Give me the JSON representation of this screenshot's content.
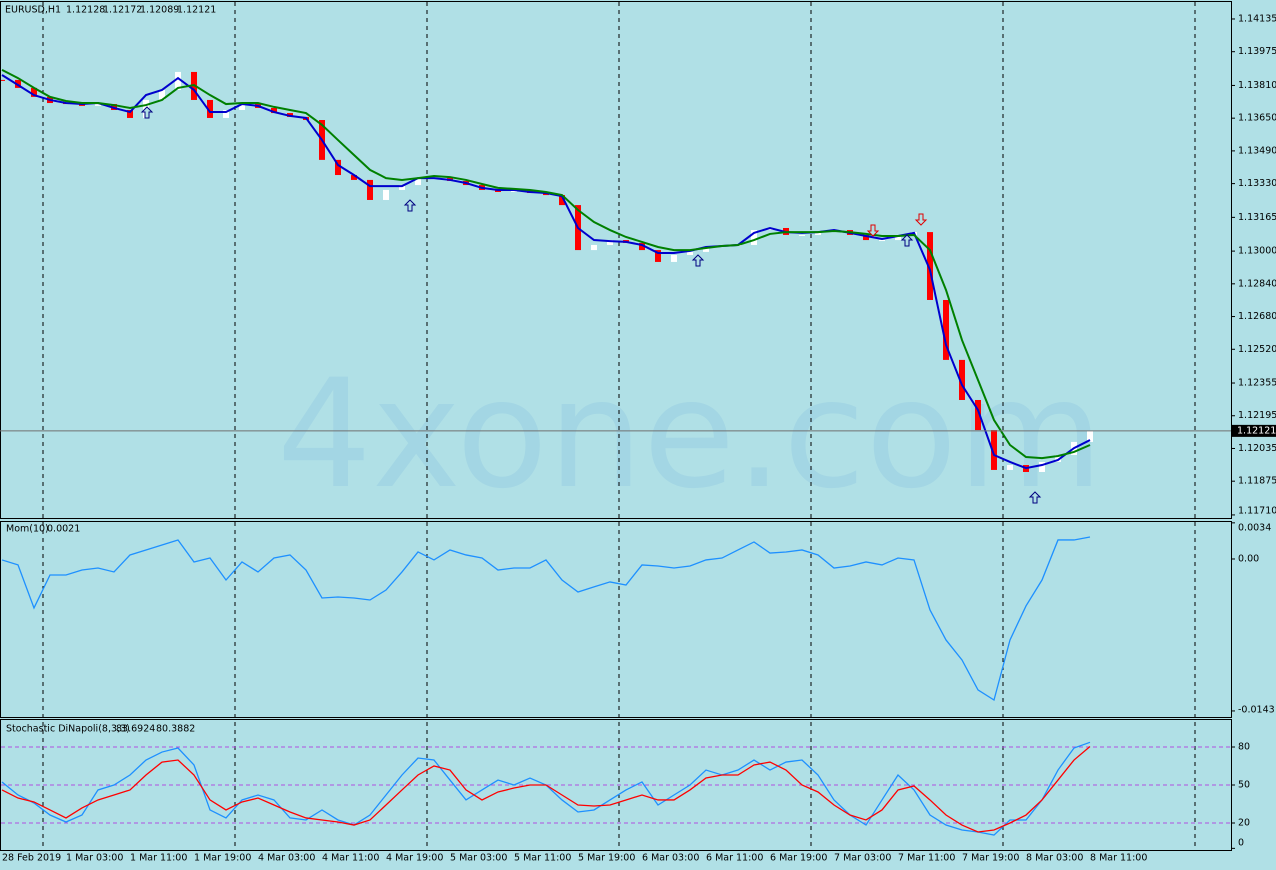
{
  "chart_data": [
    {
      "type": "candlestick",
      "title": "EURUSD,H1",
      "ohlc": [
        1.12128,
        1.12172,
        1.12089,
        1.12121
      ],
      "watermark": "4xone.com",
      "up_color": "#ffffff",
      "down_color": "#ff0000",
      "values": [
        1.13837,
        1.13798,
        1.13754,
        1.13724,
        1.13719,
        1.1371,
        1.13719,
        1.1369,
        1.13651,
        1.13739,
        1.13788,
        1.13876,
        1.13739,
        1.13651,
        1.1369,
        1.13724,
        1.137,
        1.13675,
        1.13656,
        1.13641,
        1.13446,
        1.13372,
        1.13348,
        1.1325,
        1.13299,
        1.13323,
        1.13357,
        1.13357,
        1.13343,
        1.13323,
        1.13299,
        1.13289,
        1.13299,
        1.13284,
        1.13274,
        1.13225,
        1.13005,
        1.1303,
        1.13054,
        1.1304,
        1.13005,
        1.12947,
        1.12981,
        1.12996,
        1.1302,
        1.13025,
        1.1303,
        1.13103,
        1.13113,
        1.13079,
        1.13079,
        1.13093,
        1.13103,
        1.13079,
        1.13054,
        1.13054,
        1.13079,
        1.13093,
        1.12761,
        1.12468,
        1.12272,
        1.12125,
        1.1193,
        1.11954,
        1.1192,
        1.11969,
        1.12003,
        1.12067,
        1.12121
      ],
      "series": [
        {
          "color": "#0000cd",
          "values": [
            1.13861,
            1.13812,
            1.13763,
            1.13739,
            1.13724,
            1.13719,
            1.13724,
            1.137,
            1.1368,
            1.13763,
            1.13788,
            1.13846,
            1.13788,
            1.1368,
            1.1368,
            1.13719,
            1.1371,
            1.1368,
            1.13661,
            1.13651,
            1.13543,
            1.13421,
            1.13372,
            1.13318,
            1.13318,
            1.13318,
            1.13357,
            1.13357,
            1.13348,
            1.13333,
            1.13309,
            1.13299,
            1.13299,
            1.13289,
            1.13284,
            1.13269,
            1.13113,
            1.13054,
            1.13049,
            1.13045,
            1.1303,
            1.12991,
            1.12991,
            1.13001,
            1.1302,
            1.13025,
            1.1303,
            1.13089,
            1.13113,
            1.13093,
            1.13089,
            1.13093,
            1.13103,
            1.13089,
            1.13074,
            1.13059,
            1.13074,
            1.13089,
            1.12908,
            1.12541,
            1.12345,
            1.12223,
            1.12003,
            1.11969,
            1.11939,
            1.11954,
            1.11979,
            1.12037,
            1.12076
          ]
        },
        {
          "color": "#008000",
          "values": [
            1.13886,
            1.13846,
            1.13798,
            1.13754,
            1.13734,
            1.13724,
            1.13724,
            1.13714,
            1.137,
            1.13714,
            1.13739,
            1.13798,
            1.13812,
            1.13763,
            1.13719,
            1.13724,
            1.13724,
            1.13705,
            1.1369,
            1.13675,
            1.13617,
            1.13543,
            1.1347,
            1.13397,
            1.13357,
            1.13348,
            1.13357,
            1.13367,
            1.13362,
            1.13348,
            1.13328,
            1.13309,
            1.13304,
            1.13299,
            1.13289,
            1.13274,
            1.13201,
            1.13142,
            1.13103,
            1.13069,
            1.13045,
            1.1302,
            1.13005,
            1.13005,
            1.13015,
            1.13025,
            1.1303,
            1.13054,
            1.13084,
            1.13093,
            1.13093,
            1.13093,
            1.13098,
            1.13093,
            1.13084,
            1.13074,
            1.13074,
            1.13079,
            1.13005,
            1.1281,
            1.12565,
            1.1237,
            1.12174,
            1.12052,
            1.11993,
            1.11988,
            1.11998,
            1.12018,
            1.12052
          ]
        }
      ],
      "ylim": [
        1.11695,
        1.14218
      ],
      "yticks": [
        1.14135,
        1.13975,
        {
          "value": 1.1381,
          "label": "1.13810"
        },
        {
          "value": 1.1365,
          "label": "1.13650"
        },
        {
          "value": 1.1349,
          "label": "1.13490"
        },
        {
          "value": 1.1333,
          "label": "1.13330"
        },
        1.13165,
        {
          "value": 1.13,
          "label": "1.13000"
        },
        {
          "value": 1.1284,
          "label": "1.12840"
        },
        {
          "value": 1.1268,
          "label": "1.12680"
        },
        {
          "value": 1.1252,
          "label": "1.12520"
        },
        1.12355,
        1.12195,
        1.12035,
        1.11875,
        {
          "value": 1.1171,
          "label": "1.11710"
        }
      ]
    },
    {
      "type": "line",
      "title": "Mom(10)",
      "value": 0.0021,
      "series": [
        {
          "color": "#1e90ff",
          "values": [
            -9e-05,
            -0.00056,
            -0.00461,
            -0.00151,
            -0.00151,
            -0.00104,
            -0.00085,
            -0.00122,
            0.00038,
            0.00085,
            0.00132,
            0.00179,
            -0.00028,
            9e-05,
            -0.00198,
            -0.00028,
            -0.00122,
            9e-05,
            0.00038,
            -0.00104,
            -0.00367,
            -0.00358,
            -0.00367,
            -0.00386,
            -0.00292,
            -0.00122,
            0.00066,
            -9e-05,
            0.00085,
            0.00038,
            9e-05,
            -0.00104,
            -0.00085,
            -0.00085,
            -9e-05,
            -0.00198,
            -0.00311,
            -0.00263,
            -0.00216,
            -0.00245,
            -0.00056,
            -0.00066,
            -0.00085,
            -0.00066,
            -9e-05,
            9e-05,
            0.00085,
            0.0016,
            0.00056,
            0.00066,
            0.00085,
            0.00038,
            -0.00085,
            -0.00066,
            -0.00028,
            -0.00056,
            9e-05,
            -9e-05,
            -0.0048,
            -0.00762,
            -0.0095,
            -0.01232,
            -0.01327,
            -0.00762,
            -0.00442,
            -0.00198,
            0.00179,
            0.00179,
            0.00207
          ]
        }
      ],
      "ylim": [
        -0.01487,
        0.00348
      ],
      "yticks": [
        0.0034,
        {
          "value": 0,
          "label": "0.00"
        },
        -0.0143
      ]
    },
    {
      "type": "line",
      "title": "Stochastic DiNapoli(8,3,3)",
      "readings": [
        83.6924,
        80.3882
      ],
      "series": [
        {
          "color": "#1e90ff",
          "values": [
            52.4,
            42.1,
            35.8,
            26.3,
            20.8,
            26.3,
            46.1,
            50.0,
            57.9,
            69.7,
            76.0,
            79.2,
            65.8,
            30.3,
            24.0,
            38.2,
            42.1,
            38.2,
            24.0,
            22.4,
            30.3,
            22.4,
            18.4,
            26.3,
            42.1,
            57.9,
            71.3,
            69.7,
            53.9,
            38.2,
            46.1,
            53.9,
            50.0,
            55.5,
            50.0,
            38.2,
            28.7,
            30.3,
            38.2,
            46.1,
            52.4,
            34.2,
            42.1,
            50.0,
            61.8,
            57.9,
            61.8,
            69.7,
            61.8,
            68.1,
            69.7,
            57.9,
            38.2,
            26.3,
            18.4,
            38.2,
            57.9,
            46.1,
            26.3,
            18.4,
            14.5,
            12.9,
            10.5,
            22.4,
            22.4,
            38.2,
            61.8,
            79.2,
            83.7
          ]
        },
        {
          "color": "#ff0000",
          "values": [
            46.1,
            39.7,
            36.6,
            30.3,
            24.0,
            31.9,
            38.2,
            42.1,
            46.1,
            57.9,
            68.1,
            69.7,
            57.9,
            38.2,
            30.3,
            36.6,
            39.7,
            34.2,
            28.7,
            24.0,
            22.4,
            20.8,
            18.4,
            22.4,
            34.2,
            46.1,
            57.9,
            65.0,
            61.8,
            46.1,
            38.2,
            44.5,
            47.6,
            50.0,
            50.0,
            42.1,
            34.2,
            33.4,
            34.2,
            38.2,
            42.1,
            38.2,
            38.2,
            46.1,
            55.5,
            57.9,
            57.9,
            65.8,
            68.1,
            61.8,
            50.0,
            44.5,
            34.2,
            26.3,
            22.4,
            30.3,
            46.1,
            49.2,
            38.2,
            26.3,
            18.4,
            12.9,
            14.5,
            20.0,
            26.3,
            38.2,
            53.9,
            69.7,
            80.4
          ]
        }
      ],
      "ylim": [
        -1.3,
        101.3
      ],
      "yticks": [
        80,
        50,
        20,
        0
      ],
      "levels": [
        80,
        50,
        20
      ],
      "level_color": "#b050e0",
      "x_labels": [
        "28 Feb 2019",
        "1 Mar 03:00",
        "1 Mar 11:00",
        "1 Mar 19:00",
        "4 Mar 03:00",
        "4 Mar 11:00",
        "4 Mar 19:00",
        "5 Mar 03:00",
        "5 Mar 11:00",
        "5 Mar 19:00",
        "6 Mar 03:00",
        "6 Mar 11:00",
        "6 Mar 19:00",
        "7 Mar 03:00",
        "7 Mar 11:00",
        "7 Mar 19:00",
        "8 Mar 03:00",
        "8 Mar 11:00"
      ]
    }
  ]
}
